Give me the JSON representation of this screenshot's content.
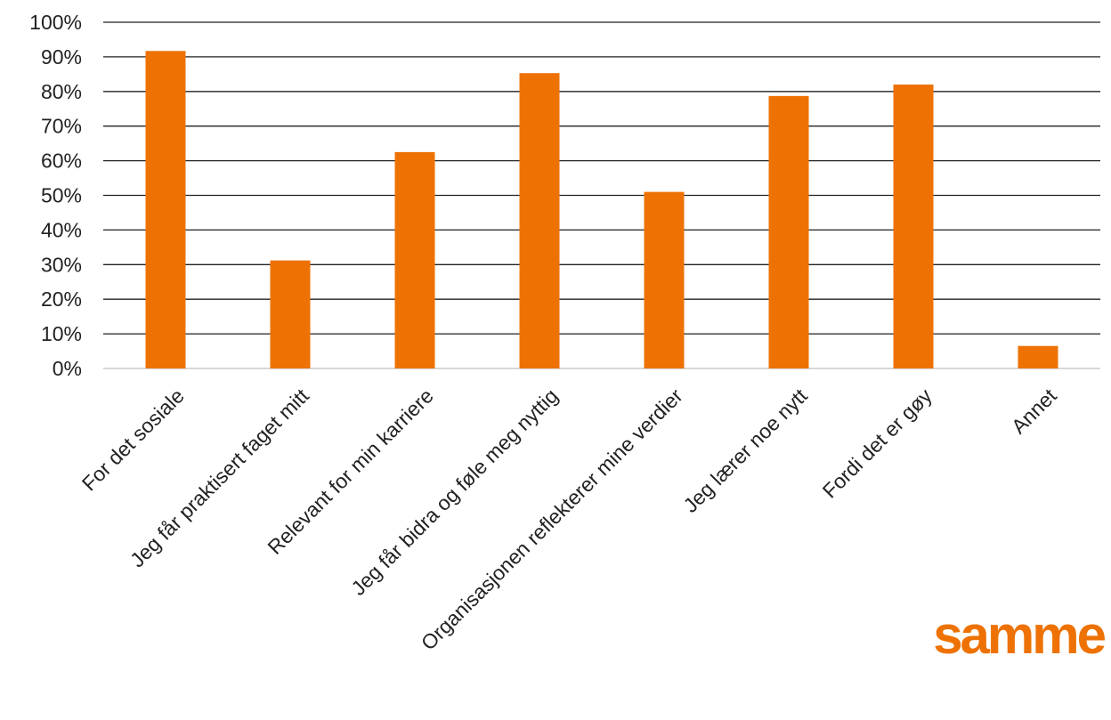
{
  "chart_data": {
    "type": "bar",
    "categories": [
      "For det sosiale",
      "Jeg får praktisert faget mitt",
      "Relevant for min karriere",
      "Jeg får bidra og føle meg nyttig",
      "Organisasjonen reflekterer mine verdier",
      "Jeg lærer noe nytt",
      "Fordi det er gøy",
      "Annet"
    ],
    "values": [
      91.7,
      31.2,
      62.5,
      85.3,
      51.0,
      78.7,
      82.0,
      6.5
    ],
    "ylim": [
      0,
      100
    ],
    "yticks": [
      "0%",
      "10%",
      "20%",
      "30%",
      "40%",
      "50%",
      "60%",
      "70%",
      "80%",
      "90%",
      "100%"
    ],
    "title": "",
    "xlabel": "",
    "ylabel": "",
    "grid": true,
    "legend": "none",
    "bar_color": "#ED7203",
    "grid_color": "#222222"
  },
  "logo": {
    "text": "samme",
    "color": "#ED7203"
  }
}
